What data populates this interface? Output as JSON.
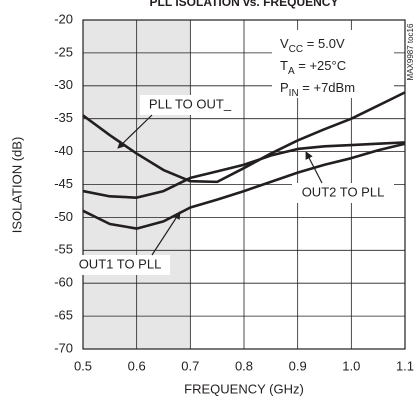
{
  "chart_data": {
    "type": "line",
    "title": "PLL ISOLATION vs. FREQUENCY",
    "x_label": "FREQUENCY (GHz)",
    "y_label": "ISOLATION (dB)",
    "x": [
      0.5,
      0.55,
      0.6,
      0.65,
      0.7,
      0.75,
      0.8,
      0.85,
      0.9,
      0.95,
      1.0,
      1.05,
      1.1
    ],
    "series": [
      {
        "name": "PLL TO OUT_",
        "color": "#231f20",
        "values": [
          -34.5,
          -37.5,
          -40.3,
          -42.8,
          -44.5,
          -44.6,
          -42.5,
          -40.3,
          -38.3,
          -36.6,
          -35,
          -33,
          -31
        ]
      },
      {
        "name": "OUT2 TO PLL",
        "color": "#231f20",
        "values": [
          -46,
          -46.8,
          -47,
          -46,
          -44,
          -43,
          -42,
          -40.6,
          -39.6,
          -39.2,
          -39,
          -38.8,
          -38.6
        ]
      },
      {
        "name": "OUT1 TO PLL",
        "color": "#231f20",
        "values": [
          -49,
          -51,
          -51.7,
          -50.6,
          -48.5,
          -47.3,
          -46,
          -44.6,
          -43.2,
          -42,
          -41,
          -39.8,
          -38.8
        ]
      }
    ],
    "xlim": [
      0.5,
      1.1
    ],
    "ylim": [
      -70,
      -20
    ],
    "xticks": [
      0.5,
      0.6,
      0.7,
      0.8,
      0.9,
      {
        "value": 1.0,
        "label": "1.0"
      },
      1.1
    ],
    "yticks": [
      -20,
      -25,
      -30,
      -35,
      -40,
      -45,
      -50,
      -55,
      -60,
      -65,
      -70
    ],
    "grid": true,
    "shaded_xrange": [
      0.5,
      0.7
    ],
    "conditions": [
      {
        "symbol": "V",
        "subscript": "CC",
        "value": " = 5.0V"
      },
      {
        "symbol": "T",
        "subscript": "A",
        "value": " = +25°C"
      },
      {
        "symbol": "P",
        "subscript": "IN",
        "value": " = +7dBm"
      }
    ],
    "figure_id": "MAX9987 toc16"
  }
}
